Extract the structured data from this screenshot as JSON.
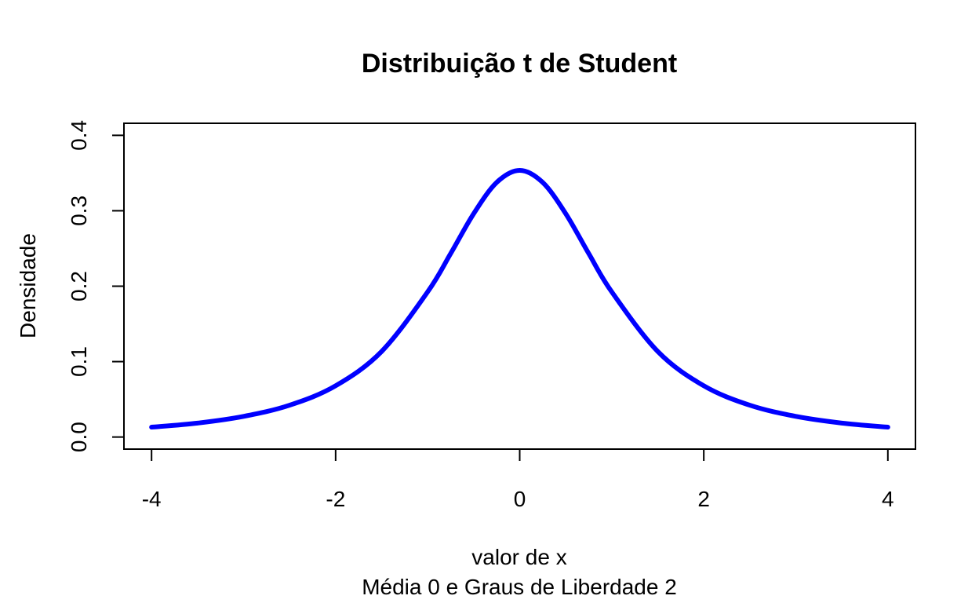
{
  "chart_data": {
    "type": "line",
    "title": "Distribuição t de Student",
    "xlabel": "valor de x",
    "subtitle": "Média 0 e Graus de Liberdade 2",
    "ylabel": "Densidade",
    "xlim": [
      -4.3,
      4.3
    ],
    "ylim": [
      -0.016,
      0.416
    ],
    "x_ticks": [
      -4,
      -2,
      0,
      2,
      4
    ],
    "x_tick_labels": [
      "-4",
      "-2",
      "0",
      "2",
      "4"
    ],
    "y_ticks": [
      0.0,
      0.1,
      0.2,
      0.3,
      0.4
    ],
    "y_tick_labels": [
      "0.0",
      "0.1",
      "0.2",
      "0.3",
      "0.4"
    ],
    "grid": false,
    "series": [
      {
        "color": "#0000ff",
        "x": [
          -4.0,
          -3.5,
          -3.0,
          -2.5,
          -2.0,
          -1.5,
          -1.0,
          -0.75,
          -0.5,
          -0.25,
          0.0,
          0.25,
          0.5,
          0.75,
          1.0,
          1.5,
          2.0,
          2.5,
          3.0,
          3.5,
          4.0
        ],
        "y": [
          0.0131,
          0.0185,
          0.0274,
          0.0422,
          0.068,
          0.1135,
          0.1925,
          0.2433,
          0.2962,
          0.3376,
          0.3536,
          0.3376,
          0.2962,
          0.2433,
          0.1925,
          0.1135,
          0.068,
          0.0422,
          0.0274,
          0.0185,
          0.0131
        ]
      }
    ]
  }
}
